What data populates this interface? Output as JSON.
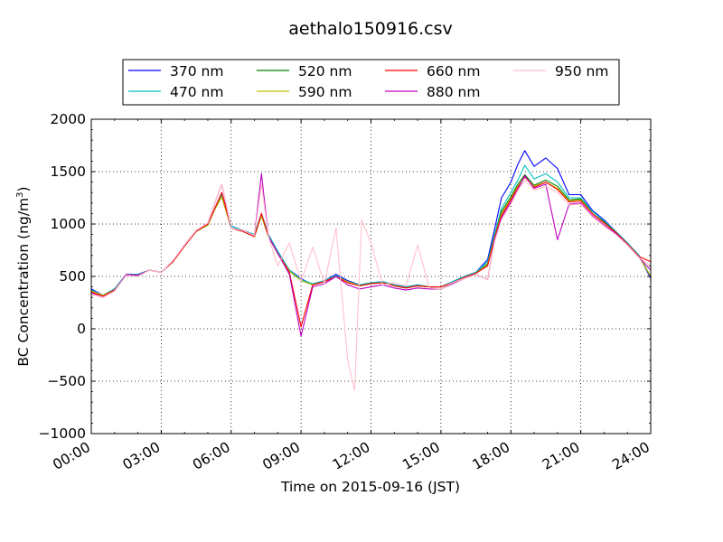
{
  "chart_data": {
    "type": "line",
    "title": "aethalo150916.csv",
    "xlabel": "Time on 2015-09-16 (JST)",
    "ylabel_main": "BC Concentration (ng/m",
    "ylabel_sup": "3",
    "ylabel_tail": ")",
    "xlim": [
      0,
      24
    ],
    "ylim": [
      -1000,
      2000
    ],
    "xticks": [
      0,
      3,
      6,
      9,
      12,
      15,
      18,
      21,
      24
    ],
    "xtick_labels": [
      "00:00",
      "03:00",
      "06:00",
      "09:00",
      "12:00",
      "15:00",
      "18:00",
      "21:00",
      "24:00"
    ],
    "yticks": [
      -1000,
      -500,
      0,
      500,
      1000,
      1500,
      2000
    ],
    "ytick_labels": [
      "−1000",
      "−500",
      "0",
      "500",
      "1000",
      "1500",
      "2000"
    ],
    "grid": true,
    "legend_position": "top-center",
    "x_unit": "hours",
    "series": [
      {
        "name": "370 nm",
        "color": "#0000ff",
        "x": [
          0,
          0.5,
          1,
          1.5,
          2,
          2.5,
          3,
          3.5,
          4,
          4.5,
          5,
          5.3,
          5.6,
          6,
          6.5,
          7,
          7.3,
          7.6,
          8,
          8.5,
          9,
          9.5,
          10,
          10.5,
          11,
          11.5,
          12,
          12.5,
          13,
          13.5,
          14,
          14.5,
          15,
          15.5,
          16,
          16.5,
          17,
          17.3,
          17.6,
          18,
          18.3,
          18.6,
          19,
          19.5,
          20,
          20.5,
          21,
          21.5,
          22,
          22.5,
          23,
          23.5,
          24
        ],
        "y": [
          380,
          320,
          380,
          520,
          520,
          560,
          540,
          640,
          800,
          930,
          990,
          1150,
          1300,
          980,
          940,
          900,
          1100,
          900,
          740,
          560,
          480,
          420,
          460,
          520,
          460,
          420,
          440,
          450,
          420,
          400,
          420,
          400,
          400,
          450,
          500,
          540,
          660,
          950,
          1250,
          1400,
          1570,
          1700,
          1550,
          1630,
          1530,
          1280,
          1280,
          1130,
          1040,
          930,
          820,
          700,
          480
        ]
      },
      {
        "name": "470 nm",
        "color": "#00bfbf",
        "x": [
          0,
          0.5,
          1,
          1.5,
          2,
          2.5,
          3,
          3.5,
          4,
          4.5,
          5,
          5.3,
          5.6,
          6,
          6.5,
          7,
          7.3,
          7.6,
          8,
          8.5,
          9,
          9.5,
          10,
          10.5,
          11,
          11.5,
          12,
          12.5,
          13,
          13.5,
          14,
          14.5,
          15,
          15.5,
          16,
          16.5,
          17,
          17.3,
          17.6,
          18,
          18.3,
          18.6,
          19,
          19.5,
          20,
          20.5,
          21,
          21.5,
          22,
          22.5,
          23,
          23.5,
          24
        ],
        "y": [
          370,
          320,
          380,
          520,
          520,
          560,
          540,
          640,
          800,
          930,
          990,
          1150,
          1280,
          980,
          940,
          900,
          1100,
          900,
          740,
          560,
          470,
          430,
          460,
          510,
          450,
          420,
          440,
          450,
          420,
          400,
          420,
          400,
          400,
          450,
          500,
          540,
          640,
          900,
          1150,
          1300,
          1420,
          1560,
          1430,
          1480,
          1400,
          1250,
          1250,
          1120,
          1030,
          930,
          820,
          700,
          500
        ]
      },
      {
        "name": "520 nm",
        "color": "#008000",
        "x": [
          0,
          0.5,
          1,
          1.5,
          2,
          2.5,
          3,
          3.5,
          4,
          4.5,
          5,
          5.3,
          5.6,
          6,
          6.5,
          7,
          7.3,
          7.6,
          8,
          8.5,
          9,
          9.5,
          10,
          10.5,
          11,
          11.5,
          12,
          12.5,
          13,
          13.5,
          14,
          14.5,
          15,
          15.5,
          16,
          16.5,
          17,
          17.3,
          17.6,
          18,
          18.3,
          18.6,
          19,
          19.5,
          20,
          20.5,
          21,
          21.5,
          22,
          22.5,
          23,
          23.5,
          24
        ],
        "y": [
          360,
          320,
          370,
          510,
          510,
          560,
          540,
          640,
          790,
          930,
          990,
          1140,
          1260,
          960,
          930,
          880,
          1080,
          880,
          720,
          550,
          460,
          420,
          450,
          500,
          450,
          410,
          430,
          440,
          410,
          390,
          410,
          400,
          400,
          440,
          490,
          530,
          620,
          880,
          1120,
          1260,
          1380,
          1470,
          1370,
          1420,
          1360,
          1230,
          1240,
          1100,
          1020,
          920,
          810,
          690,
          500
        ]
      },
      {
        "name": "590 nm",
        "color": "#bfbf00",
        "x": [
          0,
          0.5,
          1,
          1.5,
          2,
          2.5,
          3,
          3.5,
          4,
          4.5,
          5,
          5.3,
          5.6,
          6,
          6.5,
          7,
          7.3,
          7.6,
          8,
          8.5,
          9,
          9.5,
          10,
          10.5,
          11,
          11.5,
          12,
          12.5,
          13,
          13.5,
          14,
          14.5,
          15,
          15.5,
          16,
          16.5,
          17,
          17.3,
          17.6,
          18,
          18.3,
          18.6,
          19,
          19.5,
          20,
          20.5,
          21,
          21.5,
          22,
          22.5,
          23,
          23.5,
          24
        ],
        "y": [
          360,
          320,
          370,
          510,
          510,
          560,
          540,
          640,
          790,
          930,
          990,
          1140,
          1260,
          960,
          930,
          880,
          1080,
          880,
          720,
          550,
          460,
          420,
          450,
          500,
          450,
          410,
          430,
          440,
          410,
          390,
          410,
          400,
          400,
          440,
          490,
          530,
          610,
          870,
          1100,
          1240,
          1360,
          1450,
          1360,
          1400,
          1340,
          1220,
          1230,
          1100,
          1010,
          920,
          810,
          690,
          500
        ]
      },
      {
        "name": "660 nm",
        "color": "#ff0000",
        "x": [
          0,
          0.5,
          1,
          1.5,
          2,
          2.5,
          3,
          3.5,
          4,
          4.5,
          5,
          5.3,
          5.6,
          6,
          6.5,
          7,
          7.3,
          7.6,
          8,
          8.5,
          9,
          9.5,
          10,
          10.5,
          11,
          11.5,
          12,
          12.5,
          13,
          13.5,
          14,
          14.5,
          15,
          15.5,
          16,
          16.5,
          17,
          17.3,
          17.6,
          18,
          18.3,
          18.6,
          19,
          19.5,
          20,
          20.5,
          21,
          21.5,
          22,
          22.5,
          23,
          23.5,
          24
        ],
        "y": [
          350,
          310,
          370,
          510,
          510,
          560,
          540,
          640,
          790,
          930,
          1000,
          1150,
          1300,
          960,
          930,
          880,
          1100,
          880,
          720,
          540,
          20,
          420,
          450,
          500,
          440,
          410,
          430,
          440,
          410,
          390,
          410,
          400,
          400,
          440,
          490,
          530,
          600,
          860,
          1080,
          1230,
          1350,
          1450,
          1350,
          1400,
          1330,
          1210,
          1220,
          1100,
          1010,
          920,
          810,
          690,
          640
        ]
      },
      {
        "name": "880 nm",
        "color": "#bf00bf",
        "x": [
          0,
          0.5,
          1,
          1.5,
          2,
          2.5,
          3,
          3.5,
          4,
          4.5,
          5,
          5.3,
          5.6,
          6,
          6.5,
          7,
          7.3,
          7.6,
          8,
          8.5,
          9,
          9.5,
          10,
          10.5,
          11,
          11.5,
          12,
          12.5,
          13,
          13.5,
          14,
          14.5,
          15,
          15.5,
          16,
          16.5,
          17,
          17.3,
          17.6,
          18,
          18.3,
          18.6,
          19,
          19.5,
          20,
          20.5,
          21,
          21.5,
          22,
          22.5,
          23,
          23.5,
          24
        ],
        "y": [
          340,
          300,
          360,
          520,
          510,
          560,
          540,
          650,
          800,
          940,
          1010,
          1200,
          1380,
          960,
          940,
          890,
          1480,
          880,
          720,
          520,
          -70,
          400,
          430,
          500,
          420,
          380,
          400,
          420,
          390,
          370,
          390,
          380,
          380,
          430,
          480,
          520,
          470,
          850,
          1060,
          1210,
          1330,
          1460,
          1340,
          1380,
          850,
          1190,
          1200,
          1080,
          990,
          910,
          800,
          680,
          560
        ]
      },
      {
        "name": "950 nm",
        "color": "#ffc0cb",
        "x": [
          0,
          0.5,
          1,
          1.5,
          2,
          2.5,
          3,
          3.5,
          4,
          4.5,
          5,
          5.3,
          5.6,
          6,
          6.5,
          7,
          7.3,
          7.6,
          8,
          8.5,
          9,
          9.5,
          10,
          10.5,
          11,
          11.3,
          11.6,
          12,
          12.5,
          13,
          13.5,
          14,
          14.5,
          15,
          15.5,
          16,
          16.5,
          17,
          17.3,
          17.6,
          18,
          18.3,
          18.6,
          19,
          19.5,
          20,
          20.5,
          21,
          21.5,
          22,
          22.5,
          23,
          23.5,
          24
        ],
        "y": [
          330,
          300,
          360,
          510,
          500,
          560,
          540,
          650,
          800,
          940,
          1010,
          1200,
          1380,
          960,
          940,
          890,
          1380,
          880,
          600,
          820,
          450,
          780,
          430,
          960,
          -300,
          -590,
          1040,
          820,
          420,
          440,
          410,
          800,
          390,
          380,
          440,
          480,
          520,
          470,
          830,
          1040,
          1190,
          1320,
          1420,
          1320,
          1360,
          1300,
          1180,
          1190,
          1070,
          980,
          900,
          800,
          680,
          600
        ]
      }
    ]
  }
}
